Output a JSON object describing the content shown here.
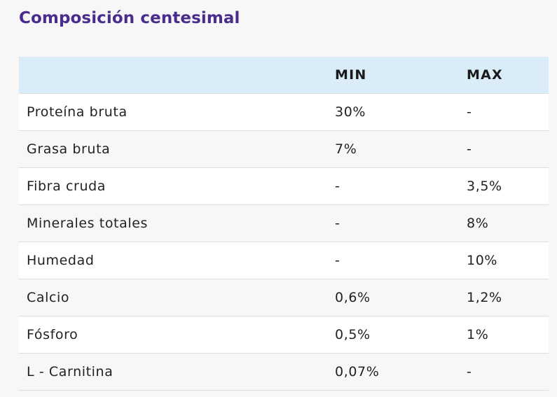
{
  "heading": "Composición centesimal",
  "table": {
    "headers": [
      "",
      "MIN",
      "MAX"
    ],
    "rows": [
      {
        "name": "Proteína bruta",
        "min": "30%",
        "max": "-"
      },
      {
        "name": "Grasa bruta",
        "min": "7%",
        "max": "-"
      },
      {
        "name": "Fibra cruda",
        "min": "-",
        "max": "3,5%"
      },
      {
        "name": "Minerales totales",
        "min": "-",
        "max": "8%"
      },
      {
        "name": "Humedad",
        "min": "-",
        "max": "10%"
      },
      {
        "name": "Calcio",
        "min": "0,6%",
        "max": "1,2%"
      },
      {
        "name": "Fósforo",
        "min": "0,5%",
        "max": "1%"
      },
      {
        "name": "L - Carnitina",
        "min": "0,07%",
        "max": "-"
      }
    ]
  },
  "colors": {
    "heading": "#4a2c8c",
    "header_background": "#d9ecf7",
    "row_odd": "#ffffff",
    "row_even": "#f7f7f7",
    "page_background": "#f7f7f7"
  }
}
